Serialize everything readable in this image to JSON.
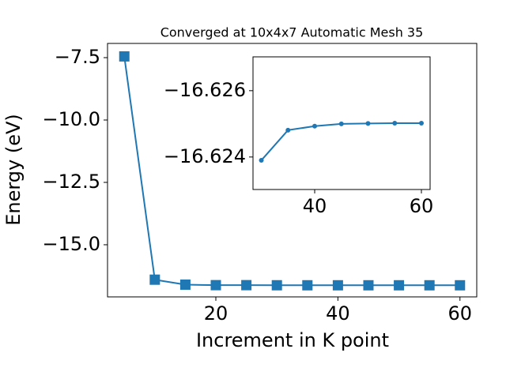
{
  "chart_data": [
    {
      "type": "line",
      "title": "Converged at 10x4x7 Automatic Mesh 35",
      "x_label": "Increment in K point",
      "y_label": "Energy (eV)",
      "x": [
        5,
        10,
        15,
        20,
        25,
        30,
        35,
        40,
        45,
        50,
        55,
        60
      ],
      "series": [
        {
          "color": "#1f77b4",
          "marker": "square",
          "values": [
            -7.45,
            -16.4,
            -16.6,
            -16.62,
            -16.62,
            -16.6239,
            -16.62481,
            -16.62493,
            -16.625,
            -16.62501,
            -16.62502,
            -16.62502
          ]
        }
      ],
      "xlim": [
        2.25,
        62.75
      ],
      "ylim": [
        -17.09,
        -6.93
      ],
      "xticks": [
        20,
        40,
        60
      ],
      "yticks": [
        {
          "value": -7.5,
          "label": "−7.5"
        },
        {
          "value": -10,
          "label": "−10.0"
        },
        {
          "value": -12.5,
          "label": "−12.5"
        },
        {
          "value": -15,
          "label": "−15.0"
        }
      ]
    },
    {
      "type": "line",
      "x": [
        30,
        35,
        40,
        45,
        50,
        55,
        60
      ],
      "series": [
        {
          "color": "#1f77b4",
          "marker": "circle",
          "values": [
            -16.6239,
            -16.62481,
            -16.62493,
            -16.625,
            -16.62501,
            -16.62502,
            -16.62502
          ]
        }
      ],
      "xlim": [
        28.44,
        61.63
      ],
      "ylim": [
        -16.62302,
        -16.62702
      ],
      "xticks": [
        40,
        60
      ],
      "yticks": [
        {
          "value": -16.626,
          "label": "−16.626"
        },
        {
          "value": -16.624,
          "label": "−16.624"
        }
      ]
    }
  ]
}
